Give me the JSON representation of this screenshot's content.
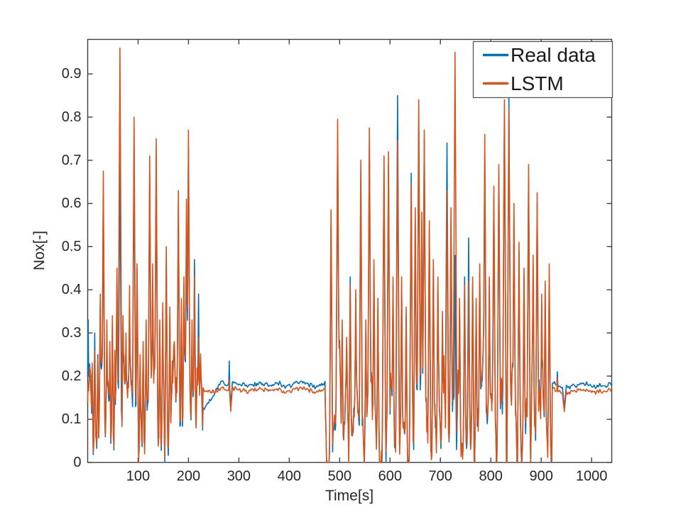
{
  "chart_data": {
    "type": "line",
    "title": "",
    "xlabel": "Time[s]",
    "ylabel": "Nox[-]",
    "xlim": [
      0,
      1040
    ],
    "ylim": [
      0,
      0.98
    ],
    "xticks": [
      100,
      200,
      300,
      400,
      500,
      600,
      700,
      800,
      900,
      1000
    ],
    "xtick_labels": [
      "100",
      "200",
      "300",
      "400",
      "500",
      "600",
      "700",
      "800",
      "900",
      "1000"
    ],
    "yticks": [
      0,
      0.1,
      0.2,
      0.3,
      0.4,
      0.5,
      0.6,
      0.7,
      0.8,
      0.9
    ],
    "ytick_labels": [
      "0",
      "0.1",
      "0.2",
      "0.3",
      "0.4",
      "0.5",
      "0.6",
      "0.7",
      "0.8",
      "0.9"
    ],
    "grid": false,
    "box": true,
    "colors": {
      "real": "#0072BD",
      "lstm": "#D95319",
      "axis": "#3f3f3f",
      "text": "#262626",
      "legend_border": "#545454",
      "background": "#ffffff"
    },
    "series": [
      {
        "name": "Real data",
        "color": "#0072BD"
      },
      {
        "name": "LSTM",
        "color": "#D95319"
      }
    ],
    "legend": {
      "position": "top-right",
      "entries": [
        {
          "label": "Real data",
          "color": "#0072BD"
        },
        {
          "label": "LSTM",
          "color": "#D95319"
        }
      ]
    },
    "signal_model": {
      "description": "Two overlapping noisy NOx traces: real measurement (blue, drawn first) and LSTM prediction (orange, drawn on top). Spiky activity 0-228s and 472-921s with dips to 0; quiet plateau near 0.17 elsewhere.",
      "sample_step": 1,
      "active_regions": [
        [
          0,
          228
        ],
        [
          472,
          921
        ]
      ],
      "active_base": {
        "offset": -0.055,
        "slow_amp": 0.31,
        "fast_amp": 0.08,
        "real_dev": 0.02,
        "lstm_dev": 0.05
      },
      "quiet_level": 0.168,
      "quiet_slow": 0.012,
      "quiet_fast": 0.01,
      "quiet_series_noise": {
        "real": 0.006,
        "lstm": 0.005
      },
      "real_offset_segments": [
        [
          228,
          262,
          -0.045,
          0.013
        ],
        [
          262,
          472,
          0.013,
          0.013
        ],
        [
          921,
          1040,
          0.013,
          0.013
        ]
      ],
      "quiet_dips": [
        [
          284,
          0.05,
          3
        ],
        [
          946,
          0.045,
          4
        ]
      ],
      "peaks": [
        [
          1,
          0.33,
          0.18
        ],
        [
          9,
          0.21,
          0.23
        ],
        [
          14,
          0.3,
          0.26
        ],
        [
          20,
          0.25,
          0.24
        ],
        [
          25,
          0.37,
          0.39
        ],
        [
          31,
          0.62,
          0.675
        ],
        [
          38,
          0.3,
          0.33
        ],
        [
          44,
          0.26,
          0.28
        ],
        [
          49,
          0.32,
          0.34
        ],
        [
          54,
          0.24,
          0.26
        ],
        [
          58,
          0.42,
          0.45
        ],
        [
          64,
          0.72,
          0.96
        ],
        [
          70,
          0.32,
          0.34
        ],
        [
          76,
          0.28,
          0.3
        ],
        [
          83,
          0.36,
          0.41
        ],
        [
          92,
          0.73,
          0.8
        ],
        [
          98,
          0.45,
          0.46
        ],
        [
          104,
          0.23,
          0.25
        ],
        [
          110,
          0.26,
          0.28
        ],
        [
          116,
          0.31,
          0.33
        ],
        [
          123,
          0.67,
          0.71
        ],
        [
          129,
          0.42,
          0.46
        ],
        [
          136,
          0.7,
          0.75
        ],
        [
          143,
          0.31,
          0.33
        ],
        [
          149,
          0.35,
          0.37
        ],
        [
          156,
          0.47,
          0.5
        ],
        [
          163,
          0.34,
          0.36
        ],
        [
          172,
          0.26,
          0.28
        ],
        [
          180,
          0.59,
          0.63
        ],
        [
          186,
          0.36,
          0.38
        ],
        [
          191,
          0.41,
          0.43
        ],
        [
          196,
          0.56,
          0.61
        ],
        [
          200,
          0.73,
          0.77
        ],
        [
          207,
          0.31,
          0.33
        ],
        [
          212,
          0.47,
          0.43
        ],
        [
          220,
          0.39,
          0.29
        ],
        [
          281,
          0.235,
          0.19
        ],
        [
          483,
          0.55,
          0.585
        ],
        [
          496,
          0.75,
          0.795
        ],
        [
          505,
          0.31,
          0.33
        ],
        [
          514,
          0.27,
          0.29
        ],
        [
          521,
          0.43,
          0.41
        ],
        [
          532,
          0.38,
          0.4
        ],
        [
          542,
          0.66,
          0.7
        ],
        [
          552,
          0.31,
          0.33
        ],
        [
          559,
          0.74,
          0.775
        ],
        [
          568,
          0.45,
          0.47
        ],
        [
          576,
          0.36,
          0.38
        ],
        [
          588,
          0.68,
          0.71
        ],
        [
          597,
          0.69,
          0.72
        ],
        [
          606,
          0.41,
          0.43
        ],
        [
          615,
          0.85,
          0.745
        ],
        [
          623,
          0.41,
          0.43
        ],
        [
          632,
          0.34,
          0.36
        ],
        [
          642,
          0.67,
          0.645
        ],
        [
          650,
          0.56,
          0.59
        ],
        [
          657,
          0.79,
          0.84
        ],
        [
          663,
          0.56,
          0.58
        ],
        [
          668,
          0.75,
          0.77
        ],
        [
          678,
          0.54,
          0.56
        ],
        [
          686,
          0.45,
          0.47
        ],
        [
          695,
          0.41,
          0.43
        ],
        [
          704,
          0.33,
          0.35
        ],
        [
          713,
          0.74,
          0.63
        ],
        [
          721,
          0.56,
          0.59
        ],
        [
          729,
          0.48,
          0.95
        ],
        [
          738,
          0.36,
          0.38
        ],
        [
          748,
          0.43,
          0.41
        ],
        [
          756,
          0.52,
          0.42
        ],
        [
          764,
          0.41,
          0.43
        ],
        [
          771,
          0.36,
          0.38
        ],
        [
          778,
          0.44,
          0.46
        ],
        [
          788,
          0.71,
          0.76
        ],
        [
          797,
          0.41,
          0.43
        ],
        [
          806,
          0.61,
          0.64
        ],
        [
          816,
          0.66,
          0.69
        ],
        [
          827,
          0.8,
          0.84
        ],
        [
          836,
          0.85,
          0.82
        ],
        [
          846,
          0.57,
          0.6
        ],
        [
          856,
          0.49,
          0.51
        ],
        [
          866,
          0.43,
          0.45
        ],
        [
          875,
          0.66,
          0.69
        ],
        [
          884,
          0.46,
          0.48
        ],
        [
          892,
          0.6,
          0.625
        ],
        [
          901,
          0.37,
          0.39
        ],
        [
          908,
          0.4,
          0.42
        ],
        [
          916,
          0.43,
          0.46
        ],
        [
          932,
          0.21,
          0.195
        ]
      ]
    }
  }
}
